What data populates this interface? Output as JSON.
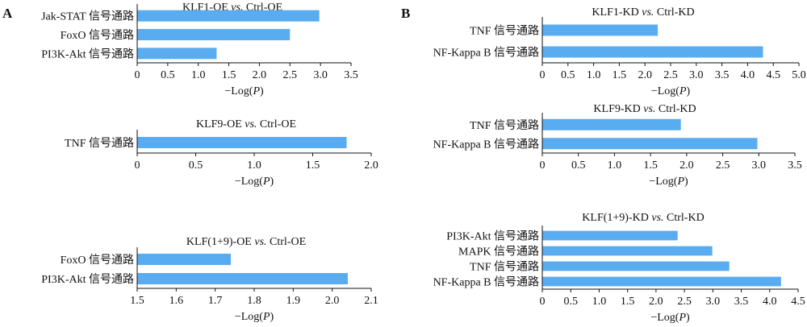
{
  "panels": [
    {
      "letter": "A"
    },
    {
      "letter": "B"
    }
  ],
  "bar_color": "#5aacf0",
  "chart_data": [
    {
      "type": "bar",
      "orientation": "horizontal",
      "panel": "A",
      "title_parts": [
        "KLF1-OE ",
        "vs.",
        " Ctrl-OE"
      ],
      "categories": [
        "Jak-STAT 信号通路",
        "FoxO 信号通路",
        "PI3K-Akt 信号通路"
      ],
      "values": [
        2.98,
        2.5,
        1.3
      ],
      "xlabel_parts": [
        "−Log(",
        "P",
        ")"
      ],
      "xlim": [
        0,
        3.5
      ],
      "ticks": [
        "0",
        "0.5",
        "1.0",
        "1.5",
        "2.0",
        "2.5",
        "3.0",
        "3.5"
      ],
      "grid": false
    },
    {
      "type": "bar",
      "orientation": "horizontal",
      "panel": "A",
      "title_parts": [
        "KLF9-OE ",
        "vs.",
        " Ctrl-OE"
      ],
      "categories": [
        "TNF 信号通路"
      ],
      "values": [
        1.79
      ],
      "xlabel_parts": [
        "−Log(",
        "P",
        ")"
      ],
      "xlim": [
        0,
        2.0
      ],
      "ticks": [
        "0",
        "0.5",
        "1.0",
        "1.5",
        "2.0"
      ],
      "grid": false
    },
    {
      "type": "bar",
      "orientation": "horizontal",
      "panel": "A",
      "title_parts": [
        "KLF(1+9)-OE ",
        "vs.",
        " Ctrl-OE"
      ],
      "categories": [
        "FoxO 信号通路",
        "PI3K-Akt 信号通路"
      ],
      "values": [
        1.74,
        2.04
      ],
      "xlabel_parts": [
        "−Log(",
        "P",
        ")"
      ],
      "xlim": [
        1.5,
        2.1
      ],
      "ticks": [
        "1.5",
        "1.6",
        "1.7",
        "1.8",
        "1.9",
        "2.0",
        "2.1"
      ],
      "grid": false
    },
    {
      "type": "bar",
      "orientation": "horizontal",
      "panel": "B",
      "title_parts": [
        "KLF1-KD ",
        "vs.",
        " Ctrl-KD"
      ],
      "categories": [
        "TNF 信号通路",
        "NF-Kappa B 信号通路"
      ],
      "values": [
        2.25,
        4.3
      ],
      "xlabel_parts": [
        "−Log(",
        "P",
        ")"
      ],
      "xlim": [
        0,
        5.0
      ],
      "ticks": [
        "0",
        "0.5",
        "1.0",
        "1.5",
        "2.0",
        "2.5",
        "3.0",
        "3.5",
        "4.0",
        "4.5",
        "5.0"
      ],
      "grid": false
    },
    {
      "type": "bar",
      "orientation": "horizontal",
      "panel": "B",
      "title_parts": [
        "KLF9-KD ",
        "vs.",
        " Ctrl-KD"
      ],
      "categories": [
        "TNF 信号通路",
        "NF-Kappa B 信号通路"
      ],
      "values": [
        1.92,
        2.98
      ],
      "xlabel_parts": [
        "−Log(",
        "P",
        ")"
      ],
      "xlim": [
        0,
        3.5
      ],
      "ticks": [
        "0",
        "0.5",
        "1.0",
        "1.5",
        "2.0",
        "2.5",
        "3.0",
        "3.5"
      ],
      "grid": false
    },
    {
      "type": "bar",
      "orientation": "horizontal",
      "panel": "B",
      "title_parts": [
        "KLF(1+9)-KD ",
        "vs.",
        " Ctrl-KD"
      ],
      "categories": [
        "PI3K-Akt 信号通路",
        "MAPK 信号通路",
        "TNF 信号通路",
        "NF-Kappa B 信号通路"
      ],
      "values": [
        2.38,
        2.99,
        3.29,
        4.2
      ],
      "xlabel_parts": [
        "−Log(",
        "P",
        ")"
      ],
      "xlim": [
        0,
        4.5
      ],
      "ticks": [
        "0",
        "0.5",
        "1.0",
        "1.5",
        "2.0",
        "2.5",
        "3.0",
        "3.5",
        "4.0",
        "4.5"
      ],
      "grid": false
    }
  ]
}
